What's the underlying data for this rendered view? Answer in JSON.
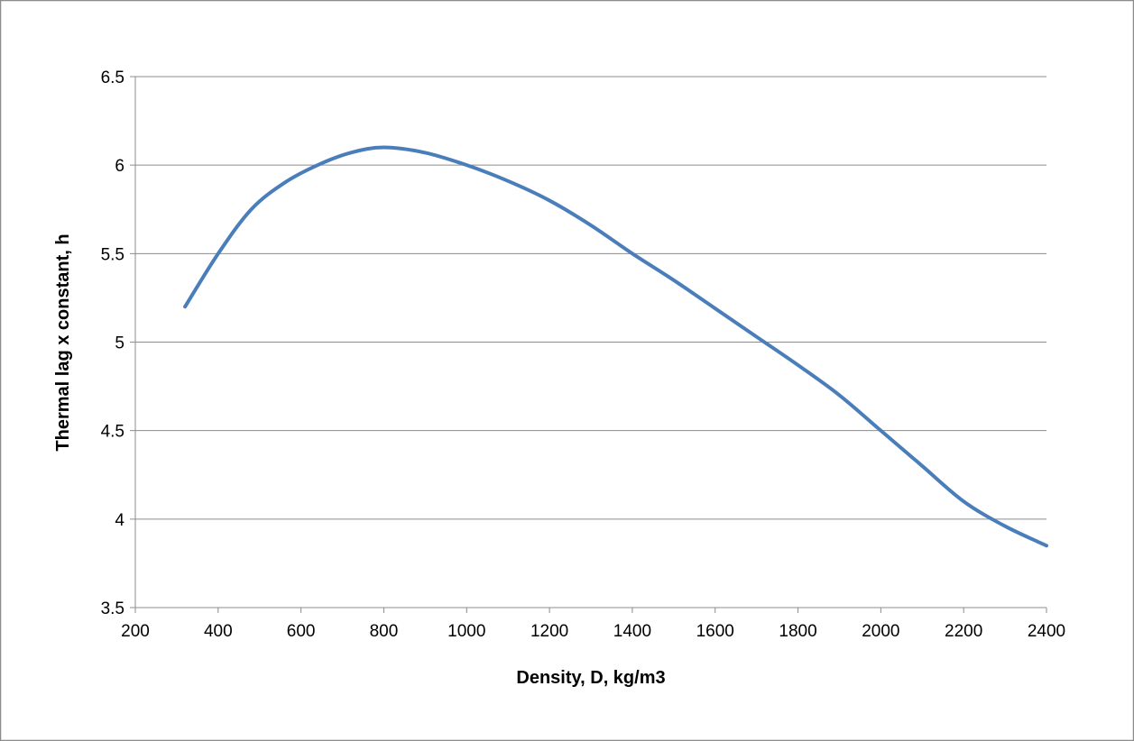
{
  "chart_data": {
    "type": "line",
    "title": "",
    "xlabel": "Density, D, kg/m3",
    "ylabel": "Thermal lag x constant, h",
    "xlim": [
      200,
      2400
    ],
    "ylim": [
      3.5,
      6.5
    ],
    "x_ticks": [
      "200",
      "400",
      "600",
      "800",
      "1000",
      "1200",
      "1400",
      "1600",
      "1800",
      "2000",
      "2200",
      "2400"
    ],
    "y_ticks": [
      "3.5",
      "4",
      "4.5",
      "5",
      "5.5",
      "6",
      "6.5"
    ],
    "grid": "horizontal",
    "legend": "none",
    "series": [
      {
        "color": "#4a7ebb",
        "x": [
          320,
          400,
          480,
          560,
          640,
          720,
          800,
          900,
          1000,
          1100,
          1200,
          1300,
          1400,
          1500,
          1600,
          1700,
          1800,
          1900,
          2000,
          2100,
          2200,
          2300,
          2400
        ],
        "y": [
          5.2,
          5.5,
          5.75,
          5.9,
          6.0,
          6.07,
          6.1,
          6.07,
          6.0,
          5.91,
          5.8,
          5.66,
          5.5,
          5.35,
          5.19,
          5.03,
          4.87,
          4.7,
          4.5,
          4.3,
          4.1,
          3.96,
          3.85
        ]
      }
    ],
    "colors": {
      "frame": "#8c8c8c",
      "gridline": "#8c8c8c",
      "axis": "#8c8c8c",
      "line": "#4a7ebb"
    }
  }
}
